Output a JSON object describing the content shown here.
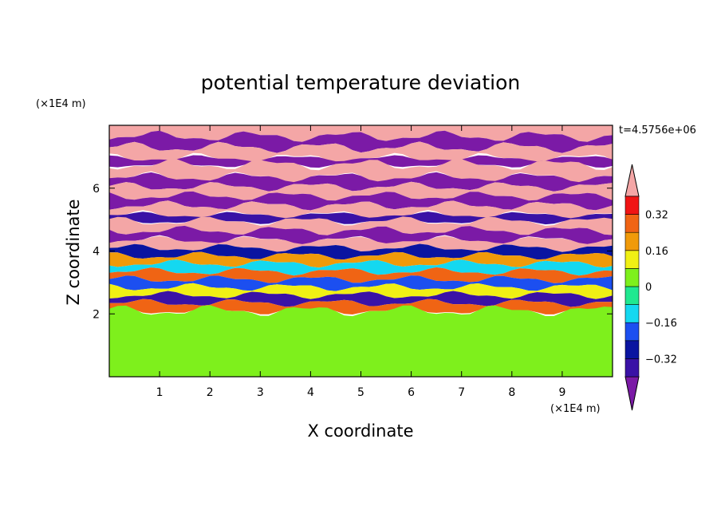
{
  "chart_data": {
    "type": "heatmap",
    "title": "potential temperature deviation",
    "xlabel": "X coordinate",
    "ylabel": "Z coordinate",
    "x_unit_label": "(×1E4 m)",
    "y_unit_label": "(×1E4 m)",
    "time_label": "t=4.5756e+06",
    "xlim": [
      0,
      10
    ],
    "ylim": [
      0,
      8
    ],
    "x_ticks": [
      1,
      2,
      3,
      4,
      5,
      6,
      7,
      8,
      9
    ],
    "y_ticks": [
      2,
      4,
      6
    ],
    "colorbar": {
      "levels": [
        -0.4,
        -0.32,
        -0.24,
        -0.16,
        -0.08,
        0,
        0.08,
        0.16,
        0.24,
        0.32,
        0.4
      ],
      "labeled_ticks": [
        {
          "value": 0.32,
          "label": "0.32"
        },
        {
          "value": 0.16,
          "label": "0.16"
        },
        {
          "value": 0,
          "label": "0"
        },
        {
          "value": -0.16,
          "label": "−0.16"
        },
        {
          "value": -0.32,
          "label": "−0.32"
        }
      ],
      "over_color": "#f4a6a6",
      "under_color": "#7b1aa6",
      "colors": [
        "#3a12a6",
        "#0a14a0",
        "#1c4ff0",
        "#14d8f0",
        "#20e890",
        "#7ef01c",
        "#f0f014",
        "#f09a0a",
        "#f06414",
        "#f01414"
      ]
    },
    "layers": [
      {
        "z": [
          7.65,
          8.0
        ],
        "value": 0.45
      },
      {
        "z": [
          7.3,
          7.65
        ],
        "value": -0.45
      },
      {
        "z": [
          6.95,
          7.3
        ],
        "value": 0.45
      },
      {
        "z": [
          6.75,
          6.95
        ],
        "value": -0.45
      },
      {
        "z": [
          6.35,
          6.75
        ],
        "value": 0.45
      },
      {
        "z": [
          6.05,
          6.35
        ],
        "value": -0.45
      },
      {
        "z": [
          5.75,
          6.05
        ],
        "value": 0.45
      },
      {
        "z": [
          5.45,
          5.75
        ],
        "value": -0.45
      },
      {
        "z": [
          5.15,
          5.45
        ],
        "value": 0.45
      },
      {
        "z": [
          4.95,
          5.15
        ],
        "value": -0.36
      },
      {
        "z": [
          4.65,
          4.95
        ],
        "value": 0.45
      },
      {
        "z": [
          4.35,
          4.65
        ],
        "value": -0.45
      },
      {
        "z": [
          4.1,
          4.35
        ],
        "value": 0.45
      },
      {
        "z": [
          3.85,
          4.1
        ],
        "value": -0.28
      },
      {
        "z": [
          3.6,
          3.85
        ],
        "value": 0.2
      },
      {
        "z": [
          3.35,
          3.6
        ],
        "value": -0.12
      },
      {
        "z": [
          3.1,
          3.35
        ],
        "value": 0.28
      },
      {
        "z": [
          2.85,
          3.1
        ],
        "value": -0.2
      },
      {
        "z": [
          2.6,
          2.85
        ],
        "value": 0.1
      },
      {
        "z": [
          2.35,
          2.6
        ],
        "value": -0.36
      },
      {
        "z": [
          2.1,
          2.35
        ],
        "value": 0.25
      },
      {
        "z": [
          0.0,
          2.1
        ],
        "value": 0.04
      }
    ]
  }
}
